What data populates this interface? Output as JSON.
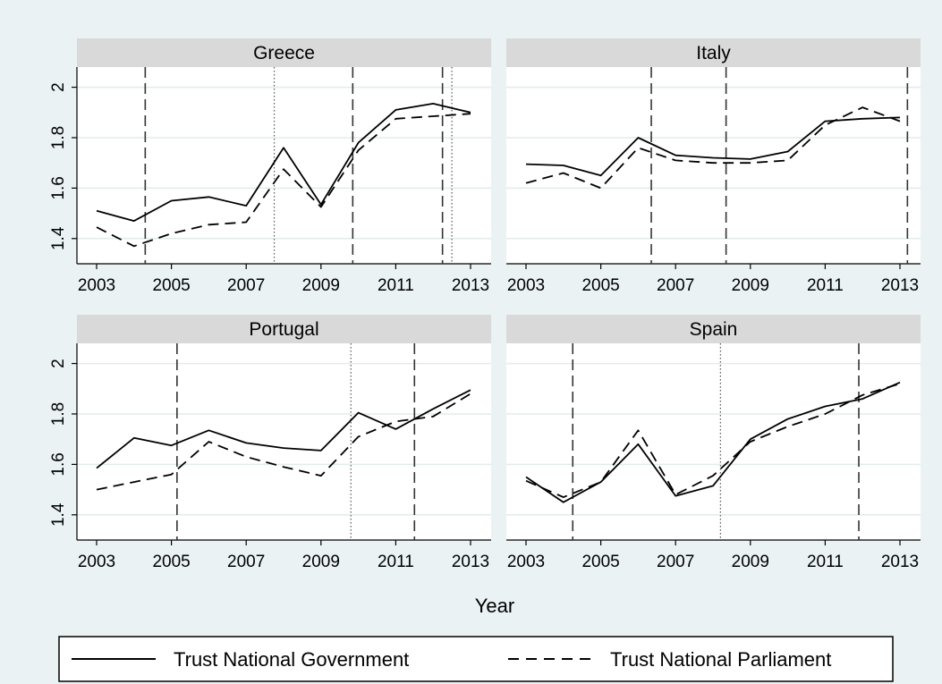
{
  "chart_data": {
    "type": "line",
    "xlabel": "Year",
    "ylabel": "",
    "xlim": [
      2003,
      2013
    ],
    "ylim": [
      1.3,
      2.08
    ],
    "x_ticks": [
      2003,
      2005,
      2007,
      2009,
      2011,
      2013
    ],
    "y_ticks": [
      1.4,
      1.6,
      1.8,
      2
    ],
    "y_tick_labels": [
      "1.4",
      "1.6",
      "1.8",
      "2"
    ],
    "legend": {
      "placement": "bottom",
      "entries": [
        {
          "label": "Trust National Government",
          "style": "solid"
        },
        {
          "label": "Trust National Parliament",
          "style": "dashed"
        }
      ]
    },
    "grid": true,
    "x": [
      2003,
      2004,
      2005,
      2006,
      2007,
      2008,
      2009,
      2010,
      2011,
      2012,
      2013
    ],
    "panels": [
      {
        "title": "Greece",
        "series": [
          {
            "name": "Trust National Government",
            "style": "solid",
            "values": [
              1.51,
              1.47,
              1.55,
              1.565,
              1.53,
              1.76,
              1.535,
              1.78,
              1.91,
              1.935,
              1.9
            ]
          },
          {
            "name": "Trust National Parliament",
            "style": "dashed",
            "values": [
              1.445,
              1.37,
              1.42,
              1.455,
              1.465,
              1.675,
              1.525,
              1.75,
              1.875,
              1.885,
              1.895
            ]
          }
        ],
        "vlines_dashed": [
          2004.3,
          2009.85,
          2012.25
        ],
        "vlines_dotted": [
          2007.75,
          2012.5
        ]
      },
      {
        "title": "Italy",
        "series": [
          {
            "name": "Trust National Government",
            "style": "solid",
            "values": [
              1.695,
              1.69,
              1.65,
              1.8,
              1.73,
              1.72,
              1.715,
              1.745,
              1.865,
              1.875,
              1.88
            ]
          },
          {
            "name": "Trust National Parliament",
            "style": "dashed",
            "values": [
              1.62,
              1.66,
              1.6,
              1.76,
              1.71,
              1.7,
              1.7,
              1.71,
              1.85,
              1.92,
              1.865
            ]
          }
        ],
        "vlines_dashed": [
          2006.35,
          2008.35,
          2013.2
        ],
        "vlines_dotted": []
      },
      {
        "title": "Portugal",
        "series": [
          {
            "name": "Trust National Government",
            "style": "solid",
            "values": [
              1.585,
              1.705,
              1.675,
              1.735,
              1.685,
              1.665,
              1.655,
              1.805,
              1.74,
              1.82,
              1.895
            ]
          },
          {
            "name": "Trust National Parliament",
            "style": "dashed",
            "values": [
              1.5,
              1.53,
              1.56,
              1.69,
              1.63,
              1.59,
              1.555,
              1.71,
              1.77,
              1.79,
              1.88
            ]
          }
        ],
        "vlines_dashed": [
          2005.15,
          2011.5
        ],
        "vlines_dotted": [
          2009.8
        ]
      },
      {
        "title": "Spain",
        "series": [
          {
            "name": "Trust National Government",
            "style": "solid",
            "values": [
              1.55,
              1.45,
              1.53,
              1.68,
              1.475,
              1.515,
              1.7,
              1.78,
              1.83,
              1.86,
              1.925
            ]
          },
          {
            "name": "Trust National Parliament",
            "style": "dashed",
            "values": [
              1.535,
              1.47,
              1.53,
              1.735,
              1.48,
              1.555,
              1.69,
              1.75,
              1.8,
              1.875,
              1.92
            ]
          }
        ],
        "vlines_dashed": [
          2004.25,
          2011.9
        ],
        "vlines_dotted": [
          2008.2
        ]
      }
    ]
  }
}
